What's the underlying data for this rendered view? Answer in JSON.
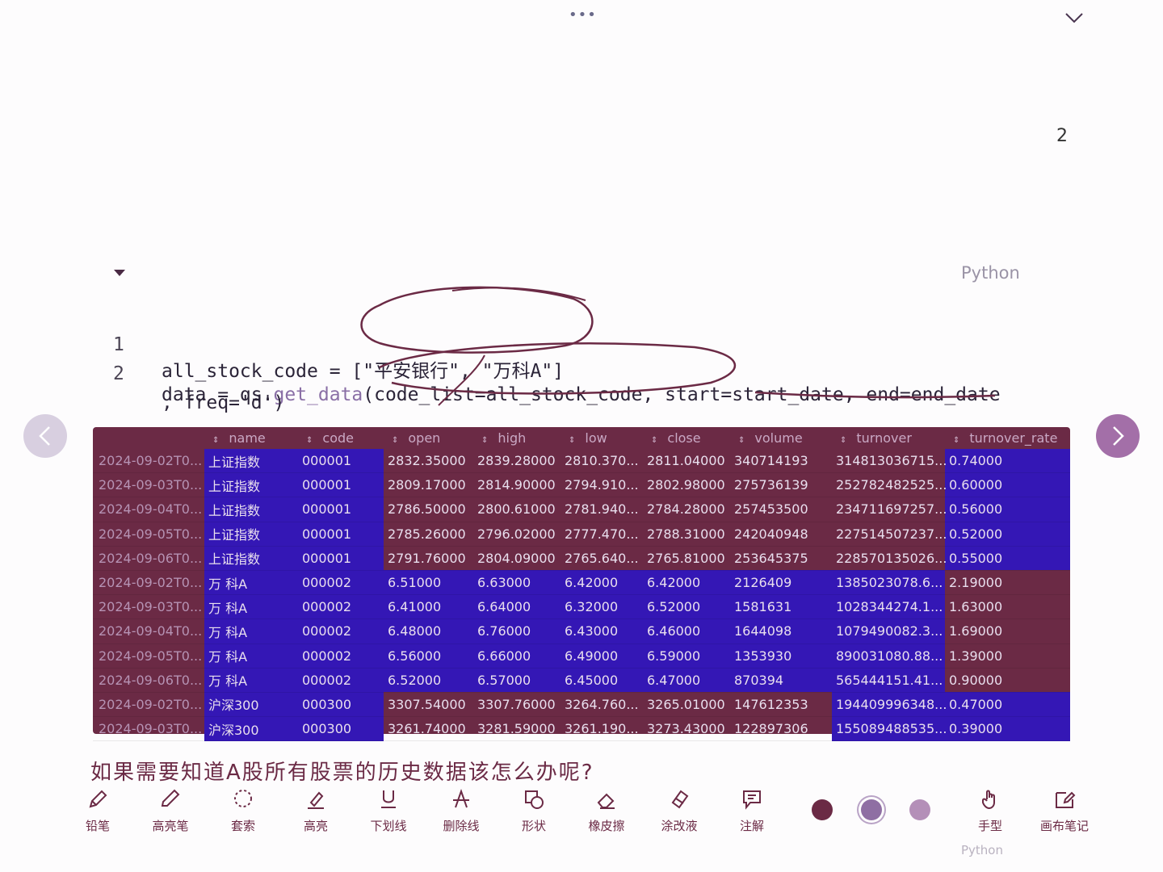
{
  "page_number": "2",
  "code_language": "Python",
  "code_lines": [
    {
      "num": "1"
    },
    {
      "num": "2"
    }
  ],
  "code": {
    "line1_var": "all_stock_code",
    "line1_op": " = ",
    "line1_val": "[\"平安银行\", \"万科A\"]",
    "line2_a": "data = qs.",
    "line2_fn": "get_data",
    "line2_b": "(code_list=all_stock_code, start=start_date, end=end_date",
    "line3": ", freq='d')"
  },
  "table": {
    "columns": [
      "",
      "name",
      "code",
      "open",
      "high",
      "low",
      "close",
      "volume",
      "turnover",
      "turnover_rate"
    ],
    "rows": [
      [
        "2024-09-02T0...",
        "上证指数",
        "000001",
        "2832.35000",
        "2839.28000",
        "2810.370...",
        "2811.04000",
        "340714193",
        "314813036715...",
        "0.74000"
      ],
      [
        "2024-09-03T0...",
        "上证指数",
        "000001",
        "2809.17000",
        "2814.90000",
        "2794.910...",
        "2802.98000",
        "275736139",
        "252782482525...",
        "0.60000"
      ],
      [
        "2024-09-04T0...",
        "上证指数",
        "000001",
        "2786.50000",
        "2800.61000",
        "2781.940...",
        "2784.28000",
        "257453500",
        "234711697257...",
        "0.56000"
      ],
      [
        "2024-09-05T0...",
        "上证指数",
        "000001",
        "2785.26000",
        "2796.02000",
        "2777.470...",
        "2788.31000",
        "242040948",
        "227514507237...",
        "0.52000"
      ],
      [
        "2024-09-06T0...",
        "上证指数",
        "000001",
        "2791.76000",
        "2804.09000",
        "2765.640...",
        "2765.81000",
        "253645375",
        "228570135026...",
        "0.55000"
      ],
      [
        "2024-09-02T0...",
        "万 科A",
        "000002",
        "6.51000",
        "6.63000",
        "6.42000",
        "6.42000",
        "2126409",
        "1385023078.6...",
        "2.19000"
      ],
      [
        "2024-09-03T0...",
        "万 科A",
        "000002",
        "6.41000",
        "6.64000",
        "6.32000",
        "6.52000",
        "1581631",
        "1028344274.1...",
        "1.63000"
      ],
      [
        "2024-09-04T0...",
        "万 科A",
        "000002",
        "6.48000",
        "6.76000",
        "6.43000",
        "6.46000",
        "1644098",
        "1079490082.3...",
        "1.69000"
      ],
      [
        "2024-09-05T0...",
        "万 科A",
        "000002",
        "6.56000",
        "6.66000",
        "6.49000",
        "6.59000",
        "1353930",
        "890031080.88...",
        "1.39000"
      ],
      [
        "2024-09-06T0...",
        "万 科A",
        "000002",
        "6.52000",
        "6.57000",
        "6.45000",
        "6.47000",
        "870394",
        "565444151.41...",
        "0.90000"
      ],
      [
        "2024-09-02T0...",
        "沪深300",
        "000300",
        "3307.54000",
        "3307.76000",
        "3264.760...",
        "3265.01000",
        "147612353",
        "194409996348...",
        "0.47000"
      ],
      [
        "2024-09-03T0...",
        "沪深300",
        "000300",
        "3261.74000",
        "3281.59000",
        "3261.190...",
        "3273.43000",
        "122897306",
        "155089488535...",
        "0.39000"
      ]
    ],
    "highlight": [
      [
        0,
        1,
        1,
        0,
        0,
        0,
        0,
        0,
        0,
        1
      ],
      [
        0,
        1,
        1,
        0,
        0,
        0,
        0,
        0,
        0,
        1
      ],
      [
        0,
        1,
        1,
        0,
        0,
        0,
        0,
        0,
        0,
        1
      ],
      [
        0,
        1,
        1,
        0,
        0,
        0,
        0,
        0,
        0,
        1
      ],
      [
        0,
        1,
        1,
        0,
        0,
        0,
        0,
        0,
        0,
        1
      ],
      [
        0,
        1,
        1,
        1,
        1,
        1,
        1,
        1,
        1,
        0
      ],
      [
        0,
        1,
        1,
        1,
        1,
        1,
        1,
        1,
        1,
        0
      ],
      [
        0,
        1,
        1,
        1,
        1,
        1,
        1,
        1,
        1,
        0
      ],
      [
        0,
        1,
        1,
        1,
        1,
        1,
        1,
        1,
        1,
        0
      ],
      [
        0,
        1,
        1,
        1,
        1,
        1,
        1,
        1,
        1,
        0
      ],
      [
        0,
        1,
        1,
        0,
        0,
        0,
        0,
        0,
        1,
        1
      ],
      [
        0,
        1,
        1,
        0,
        0,
        0,
        0,
        0,
        1,
        1
      ]
    ]
  },
  "heading_partial": "如果需要知道A股所有股票的历史数据该怎么办呢?",
  "toolbar": {
    "tools": [
      {
        "label": "铅笔",
        "icon": "pencil-icon"
      },
      {
        "label": "高亮笔",
        "icon": "highlighter-icon"
      },
      {
        "label": "套索",
        "icon": "lasso-icon"
      },
      {
        "label": "高亮",
        "icon": "highlight-icon"
      },
      {
        "label": "下划线",
        "icon": "underline-icon"
      },
      {
        "label": "删除线",
        "icon": "strikethrough-icon"
      },
      {
        "label": "形状",
        "icon": "shape-icon"
      },
      {
        "label": "橡皮擦",
        "icon": "eraser-icon"
      },
      {
        "label": "涂改液",
        "icon": "correction-fluid-icon"
      },
      {
        "label": "注解",
        "icon": "annotation-icon"
      },
      {
        "label": "手型",
        "icon": "hand-icon"
      },
      {
        "label": "画布笔记",
        "icon": "canvas-note-icon"
      }
    ],
    "colors": [
      "#6b2a45",
      "#8f6fa3",
      "#b48fb8"
    ]
  },
  "bottom_ghost_text": "Python"
}
